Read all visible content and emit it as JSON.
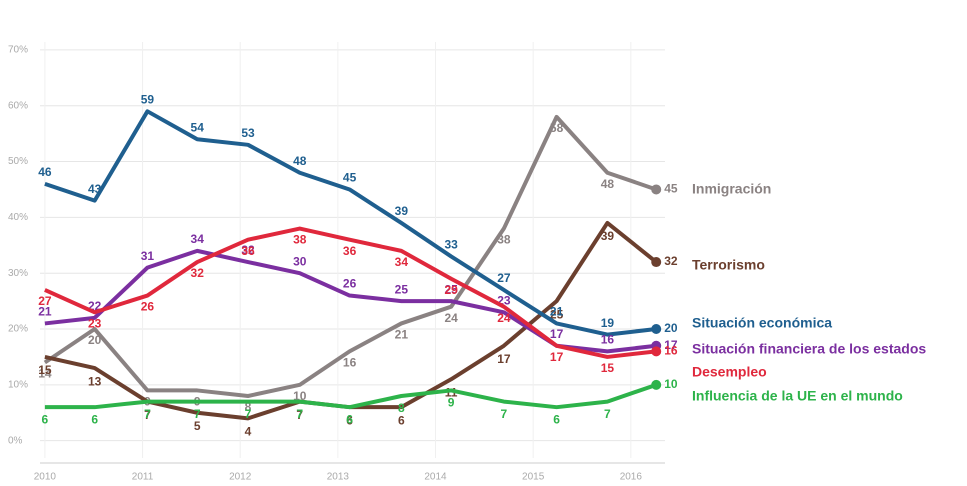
{
  "chart_data": {
    "type": "line",
    "x": [
      2010.0,
      2010.51,
      2011.05,
      2011.56,
      2012.08,
      2012.61,
      2013.12,
      2013.65,
      2014.16,
      2014.7,
      2015.24,
      2015.76,
      2016.26
    ],
    "xlim": [
      2009.95,
      2016.35
    ],
    "xticks": [
      2010,
      2011,
      2012,
      2013,
      2014,
      2015,
      2016
    ],
    "ylim": [
      -4,
      75
    ],
    "yticks": [
      {
        "value": 0,
        "label": "0%"
      },
      {
        "value": 10,
        "label": "10%"
      },
      {
        "value": 20,
        "label": "20%"
      },
      {
        "value": 30,
        "label": "30%"
      },
      {
        "value": 40,
        "label": "40%"
      },
      {
        "value": 50,
        "label": "50%"
      },
      {
        "value": 60,
        "label": "60%"
      },
      {
        "value": 70,
        "label": "70%"
      }
    ],
    "grid": true,
    "series": [
      {
        "name": "Inmigración",
        "color": "#8a8282",
        "values": [
          14,
          20,
          9,
          9,
          8,
          10,
          16,
          21,
          24,
          38,
          58,
          48,
          45
        ]
      },
      {
        "name": "Terrorismo",
        "color": "#6b3f2e",
        "values": [
          15,
          13,
          7,
          5,
          4,
          7,
          6,
          6,
          11,
          17,
          25,
          39,
          32
        ]
      },
      {
        "name": "Situación económica",
        "color": "#1f5f8f",
        "values": [
          46,
          43,
          59,
          54,
          53,
          48,
          45,
          39,
          33,
          27,
          21,
          19,
          20
        ]
      },
      {
        "name": "Situación financiera de los estados",
        "color": "#7b2fa0",
        "values": [
          21,
          22,
          31,
          34,
          32,
          30,
          26,
          25,
          25,
          23,
          17,
          16,
          17
        ]
      },
      {
        "name": "Desempleo",
        "color": "#e0283c",
        "values": [
          27,
          23,
          26,
          32,
          36,
          38,
          36,
          34,
          29,
          24,
          17,
          15,
          16
        ]
      },
      {
        "name": "Influencia de la UE en el mundo",
        "color": "#2db34a",
        "values": [
          6,
          6,
          7,
          7,
          7,
          7,
          6,
          8,
          9,
          7,
          6,
          7,
          10
        ]
      }
    ]
  }
}
